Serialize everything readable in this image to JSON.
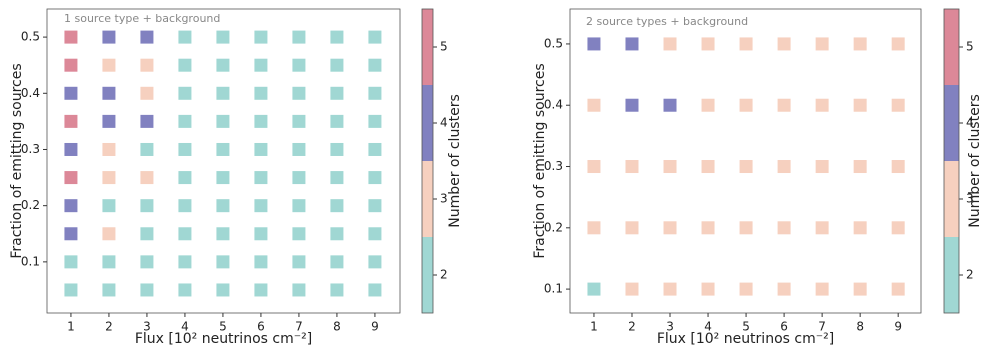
{
  "chart_data": [
    {
      "type": "heatmap",
      "annotation": "1 source type + background",
      "xlabel": "Flux [10² neutrinos cm⁻²]",
      "ylabel": "Fraction of emitting sources",
      "x": [
        1,
        2,
        3,
        4,
        5,
        6,
        7,
        8,
        9
      ],
      "y": [
        0.05,
        0.1,
        0.15,
        0.2,
        0.25,
        0.3,
        0.35,
        0.4,
        0.45,
        0.5
      ],
      "values": [
        [
          2,
          2,
          2,
          2,
          2,
          2,
          2,
          2,
          2
        ],
        [
          2,
          2,
          2,
          2,
          2,
          2,
          2,
          2,
          2
        ],
        [
          4,
          3,
          2,
          2,
          2,
          2,
          2,
          2,
          2
        ],
        [
          4,
          2,
          2,
          2,
          2,
          2,
          2,
          2,
          2
        ],
        [
          5,
          3,
          3,
          2,
          2,
          2,
          2,
          2,
          2
        ],
        [
          4,
          3,
          2,
          2,
          2,
          2,
          2,
          2,
          2
        ],
        [
          5,
          4,
          4,
          2,
          2,
          2,
          2,
          2,
          2
        ],
        [
          4,
          4,
          3,
          2,
          2,
          2,
          2,
          2,
          2
        ],
        [
          5,
          3,
          3,
          2,
          2,
          2,
          2,
          2,
          2
        ],
        [
          5,
          4,
          4,
          2,
          2,
          2,
          2,
          2,
          2
        ]
      ],
      "xlim": [
        0.37,
        9.66
      ],
      "ylim": [
        0.009,
        0.55
      ],
      "xticks": [
        1,
        2,
        3,
        4,
        5,
        6,
        7,
        8,
        9
      ],
      "yticks": [
        0.1,
        0.2,
        0.3,
        0.4,
        0.5
      ],
      "colorbar": {
        "label": "Number of clusters",
        "lim": [
          1.5,
          5.5
        ],
        "ticks": [
          2,
          3,
          4,
          5
        ],
        "colors": [
          "#a0d7d3",
          "#f6d0bf",
          "#8181c0",
          "#dc8898"
        ]
      }
    },
    {
      "type": "heatmap",
      "annotation": "2 source types + background",
      "xlabel": "Flux [10² neutrinos cm⁻²]",
      "ylabel": "Fraction of emitting sources",
      "x": [
        1,
        2,
        3,
        4,
        5,
        6,
        7,
        8,
        9
      ],
      "y": [
        0.1,
        0.2,
        0.3,
        0.4,
        0.5
      ],
      "values": [
        [
          2,
          3,
          3,
          3,
          3,
          3,
          3,
          3,
          3
        ],
        [
          3,
          3,
          3,
          3,
          3,
          3,
          3,
          3,
          3
        ],
        [
          3,
          3,
          3,
          3,
          3,
          3,
          3,
          3,
          3
        ],
        [
          3,
          4,
          4,
          3,
          3,
          3,
          3,
          3,
          3
        ],
        [
          4,
          4,
          3,
          3,
          3,
          3,
          3,
          3,
          3
        ]
      ],
      "xlim": [
        0.37,
        9.6
      ],
      "ylim": [
        0.061,
        0.557
      ],
      "xticks": [
        1,
        2,
        3,
        4,
        5,
        6,
        7,
        8,
        9
      ],
      "yticks": [
        0.1,
        0.2,
        0.3,
        0.4,
        0.5
      ],
      "colorbar": {
        "label": "Number of clusters",
        "lim": [
          1.5,
          5.5
        ],
        "ticks": [
          2,
          3,
          4,
          5
        ],
        "colors": [
          "#a0d7d3",
          "#f6d0bf",
          "#8181c0",
          "#dc8898"
        ]
      }
    }
  ]
}
